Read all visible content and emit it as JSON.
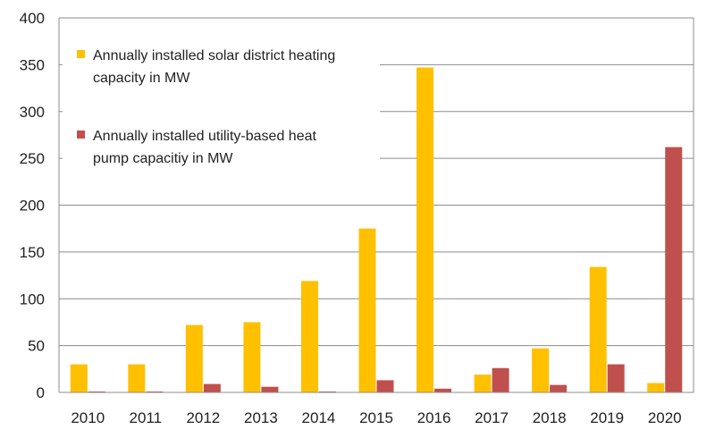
{
  "chart_data": {
    "type": "bar",
    "title": "",
    "xlabel": "",
    "ylabel": "",
    "ylim": [
      0,
      400
    ],
    "yticks": [
      0,
      50,
      100,
      150,
      200,
      250,
      300,
      350,
      400
    ],
    "grid": true,
    "legend_position": "top-left",
    "categories": [
      "2010",
      "2011",
      "2012",
      "2013",
      "2014",
      "2015",
      "2016",
      "2017",
      "2018",
      "2019",
      "2020"
    ],
    "series": [
      {
        "name": "Annually installed solar district heating capacity in MW",
        "legend_lines": [
          "Annually installed solar district heating",
          "capacity in MW"
        ],
        "color": "#FFC000",
        "values": [
          30,
          30,
          72,
          75,
          119,
          175,
          347,
          19,
          47,
          134,
          10
        ]
      },
      {
        "name": "Annually installed utility-based heat pump capacitiy in MW",
        "legend_lines": [
          "Annually installed utility-based heat",
          "pump capacitiy in MW"
        ],
        "color": "#C0504D",
        "values": [
          1,
          1,
          9,
          6,
          1,
          13,
          4,
          26,
          8,
          30,
          262
        ]
      }
    ]
  }
}
